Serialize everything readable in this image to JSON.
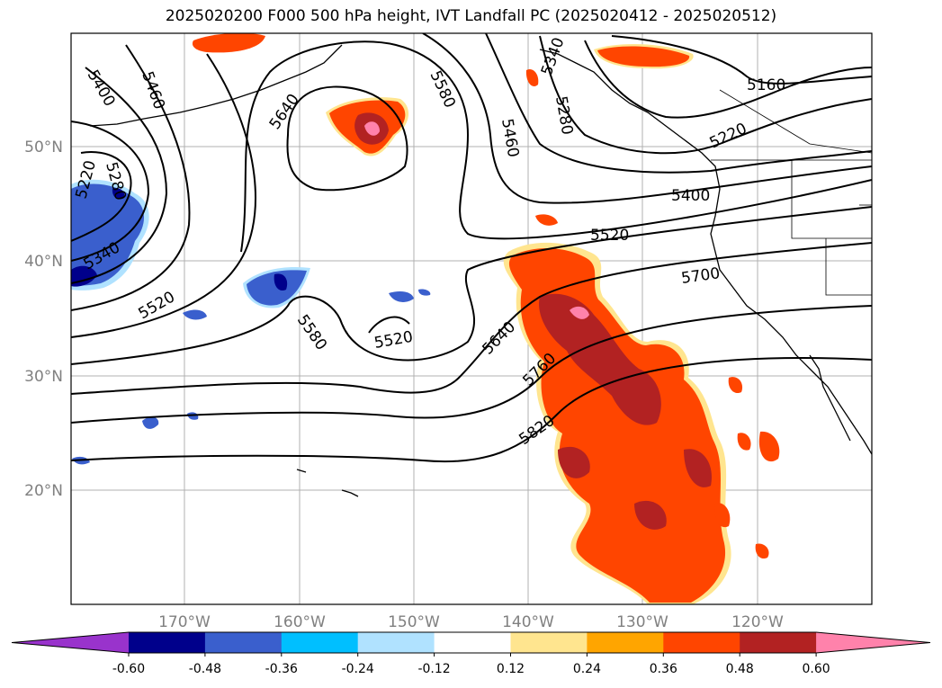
{
  "title": "2025020200 F000 500 hPa height, IVT Landfall PC (2025020412 - 2025020512)",
  "lon_ticks": [
    "170°W",
    "160°W",
    "150°W",
    "140°W",
    "130°W",
    "120°W"
  ],
  "lat_ticks": [
    "50°N",
    "40°N",
    "30°N",
    "20°N"
  ],
  "contour_labels": [
    "5400",
    "5460",
    "5640",
    "5580",
    "5340",
    "5280",
    "5460",
    "5160",
    "5220",
    "5220",
    "5280",
    "5400",
    "5520",
    "5700",
    "5340",
    "5520",
    "5580",
    "5520",
    "5640",
    "5760",
    "5820"
  ],
  "colorbar": {
    "ticks": [
      "-0.60",
      "-0.48",
      "-0.36",
      "-0.24",
      "-0.12",
      "0.12",
      "0.24",
      "0.36",
      "0.48",
      "0.60"
    ],
    "colors": [
      "#9933cc",
      "#00008b",
      "#3a5fcd",
      "#00bfff",
      "#b0e2ff",
      "#ffffff",
      "#ffe58f",
      "#ffa500",
      "#ff4500",
      "#b22222",
      "#ff82ab"
    ]
  }
}
